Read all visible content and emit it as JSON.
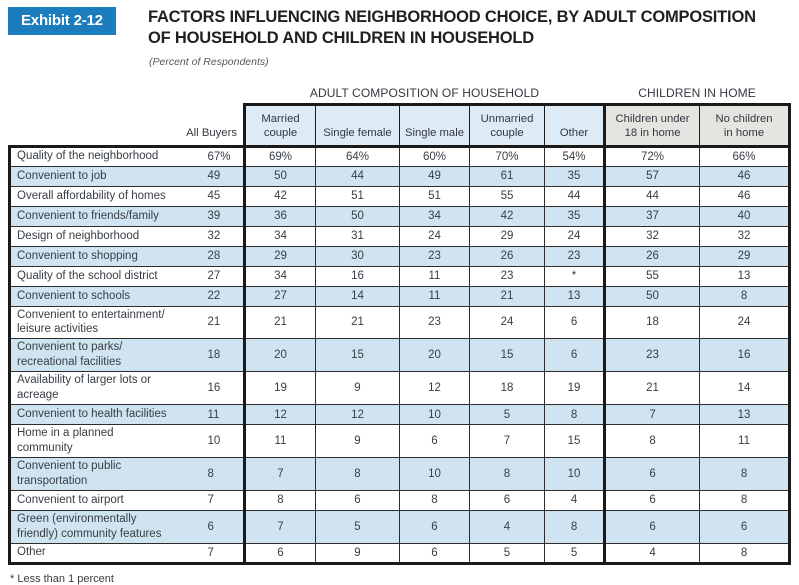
{
  "header": {
    "exhibit_label": "Exhibit 2-12",
    "title": "FACTORS INFLUENCING NEIGHBORHOOD CHOICE, BY ADULT COMPOSITION\nOF HOUSEHOLD AND CHILDREN IN HOUSEHOLD",
    "subtitle": "(Percent of Respondents)"
  },
  "table": {
    "group_headers": {
      "adult": "ADULT COMPOSITION OF HOUSEHOLD",
      "children": "CHILDREN IN HOME"
    },
    "columns": [
      "All Buyers",
      "Married\ncouple",
      "Single female",
      "Single male",
      "Unmarried\ncouple",
      "Other",
      "Children under\n18 in home",
      "No children\nin home"
    ],
    "rows": [
      {
        "label": "Quality of the neighborhood",
        "values": [
          "67%",
          "69%",
          "64%",
          "60%",
          "70%",
          "54%",
          "72%",
          "66%"
        ]
      },
      {
        "label": "Convenient to job",
        "values": [
          "49",
          "50",
          "44",
          "49",
          "61",
          "35",
          "57",
          "46"
        ]
      },
      {
        "label": "Overall affordability of homes",
        "values": [
          "45",
          "42",
          "51",
          "51",
          "55",
          "44",
          "44",
          "46"
        ]
      },
      {
        "label": "Convenient to friends/family",
        "values": [
          "39",
          "36",
          "50",
          "34",
          "42",
          "35",
          "37",
          "40"
        ]
      },
      {
        "label": "Design of neighborhood",
        "values": [
          "32",
          "34",
          "31",
          "24",
          "29",
          "24",
          "32",
          "32"
        ]
      },
      {
        "label": "Convenient to shopping",
        "values": [
          "28",
          "29",
          "30",
          "23",
          "26",
          "23",
          "26",
          "29"
        ]
      },
      {
        "label": "Quality of the school district",
        "values": [
          "27",
          "34",
          "16",
          "11",
          "23",
          "*",
          "55",
          "13"
        ]
      },
      {
        "label": "Convenient to schools",
        "values": [
          "22",
          "27",
          "14",
          "11",
          "21",
          "13",
          "50",
          "8"
        ]
      },
      {
        "label": "Convenient to entertainment/\nleisure activities",
        "values": [
          "21",
          "21",
          "21",
          "23",
          "24",
          "6",
          "18",
          "24"
        ]
      },
      {
        "label": "Convenient to parks/\nrecreational facilities",
        "values": [
          "18",
          "20",
          "15",
          "20",
          "15",
          "6",
          "23",
          "16"
        ]
      },
      {
        "label": "Availability of larger lots or\nacreage",
        "values": [
          "16",
          "19",
          "9",
          "12",
          "18",
          "19",
          "21",
          "14"
        ]
      },
      {
        "label": "Convenient to health facilities",
        "values": [
          "11",
          "12",
          "12",
          "10",
          "5",
          "8",
          "7",
          "13"
        ]
      },
      {
        "label": "Home in a planned community",
        "values": [
          "10",
          "11",
          "9",
          "6",
          "7",
          "15",
          "8",
          "11"
        ]
      },
      {
        "label": "Convenient to public\ntransportation",
        "values": [
          "8",
          "7",
          "8",
          "10",
          "8",
          "10",
          "6",
          "8"
        ]
      },
      {
        "label": "Convenient to airport",
        "values": [
          "7",
          "8",
          "6",
          "8",
          "6",
          "4",
          "6",
          "8"
        ]
      },
      {
        "label": "Green (environmentally\nfriendly) community features",
        "values": [
          "6",
          "7",
          "5",
          "6",
          "4",
          "8",
          "6",
          "6"
        ]
      },
      {
        "label": "Other",
        "values": [
          "7",
          "6",
          "9",
          "6",
          "5",
          "5",
          "4",
          "8"
        ]
      }
    ]
  },
  "footnote": "* Less than 1 percent",
  "colors": {
    "exhibit_blue": "#1b7cbe",
    "row_stripe": "#cfe4f0",
    "header_blue": "#dcebf5",
    "header_gray": "#e4e4e0",
    "border_dark": "#1a1a1a"
  }
}
